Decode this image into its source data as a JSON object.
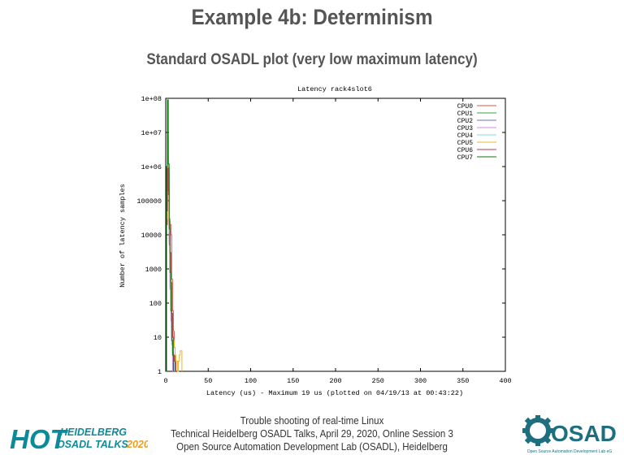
{
  "slide": {
    "title": "Example 4b: Determinism",
    "subtitle": "Standard OSADL plot (very low maximum latency)"
  },
  "footer": {
    "line1": "Trouble shooting of real-time Linux",
    "line2": "Technical Heidelberg OSADL Talks, April 29, 2020, Online Session 3",
    "line3": "Open Source Automation Development Lab (OSADL), Heidelberg"
  },
  "logos": {
    "hot": {
      "big": "HOT",
      "line1": "HEIDELBERG",
      "line2": "OSADL TALKS",
      "year": "2020",
      "color": "#0d8a9a"
    },
    "osadl": {
      "name": "OSADL",
      "tagline": "Open Source Automation Development Lab eG",
      "color": "#1d6f80"
    }
  },
  "chart_data": {
    "type": "line",
    "title": "Latency rack4slot6",
    "xlabel": "Latency (us) - Maximum 19 us (plotted on 04/19/13 at 00:43:22)",
    "ylabel": "Number of latency samples",
    "xlim": [
      0,
      400
    ],
    "x_ticks": [
      0,
      50,
      100,
      150,
      200,
      250,
      300,
      350,
      400
    ],
    "ylim": [
      1,
      100000000
    ],
    "y_scale": "log",
    "y_ticks": [
      1,
      10,
      100,
      1000,
      10000,
      100000,
      1000000,
      10000000,
      100000000
    ],
    "y_tick_labels": [
      "1",
      "10",
      "100",
      "1000",
      "10000",
      "100000",
      "1e+06",
      "1e+07",
      "1e+08"
    ],
    "legend_position": "top-right",
    "grid": false,
    "series": [
      {
        "name": "CPU0",
        "color": "#e0524c",
        "x": [
          0,
          1,
          2,
          3,
          4,
          5,
          6,
          7,
          8,
          9,
          10,
          11,
          12
        ],
        "y": [
          1,
          20000,
          400000,
          150000,
          30000,
          20000,
          10000,
          500,
          60,
          15,
          5,
          2,
          1
        ]
      },
      {
        "name": "CPU1",
        "color": "#3aa63a",
        "x": [
          0,
          1,
          2,
          3,
          4,
          5,
          6,
          7,
          8,
          9
        ],
        "y": [
          1,
          80000,
          2000000,
          600000,
          9000,
          1200,
          100,
          20,
          4,
          1
        ]
      },
      {
        "name": "CPU2",
        "color": "#7b68c8",
        "x": [
          0,
          1,
          2,
          3,
          4,
          5,
          6,
          7,
          8,
          9
        ],
        "y": [
          1,
          200000,
          8000000,
          900000,
          6000,
          300,
          60,
          10,
          3,
          1
        ]
      },
      {
        "name": "CPU3",
        "color": "#d78adf",
        "x": [
          0,
          1,
          2,
          3,
          4,
          5,
          6,
          7,
          8
        ],
        "y": [
          1,
          100000,
          6000000,
          500000,
          5000,
          250,
          30,
          6,
          1
        ]
      },
      {
        "name": "CPU4",
        "color": "#7fdbe0",
        "x": [
          0,
          1,
          2,
          3,
          4,
          5,
          6,
          7,
          8,
          9,
          10
        ],
        "y": [
          1,
          90000,
          3000000,
          400000,
          12000,
          900,
          80,
          12,
          3,
          2,
          1
        ]
      },
      {
        "name": "CPU5",
        "color": "#e6b82e",
        "x": [
          0,
          1,
          2,
          3,
          4,
          5,
          6,
          7,
          8,
          9,
          10,
          11,
          12,
          13,
          14,
          15,
          16,
          17,
          18,
          19
        ],
        "y": [
          1,
          30000,
          1000000,
          250000,
          20000,
          2000,
          300,
          40,
          15,
          8,
          5,
          3,
          2,
          2,
          1,
          2,
          3,
          4,
          4,
          1
        ]
      },
      {
        "name": "CPU6",
        "color": "#b04040",
        "x": [
          0,
          1,
          2,
          3,
          4,
          5,
          6,
          7,
          8,
          9,
          10,
          11
        ],
        "y": [
          1,
          50000,
          900000,
          200000,
          25000,
          3000,
          400,
          50,
          10,
          3,
          2,
          1
        ]
      },
      {
        "name": "CPU7",
        "color": "#0a7a0a",
        "x": [
          0,
          1,
          2,
          3,
          4,
          5,
          6,
          7,
          8,
          9,
          10
        ],
        "y": [
          1,
          1000000,
          90000000,
          1200000,
          15000,
          800,
          60,
          8,
          3,
          1,
          1
        ]
      }
    ]
  }
}
